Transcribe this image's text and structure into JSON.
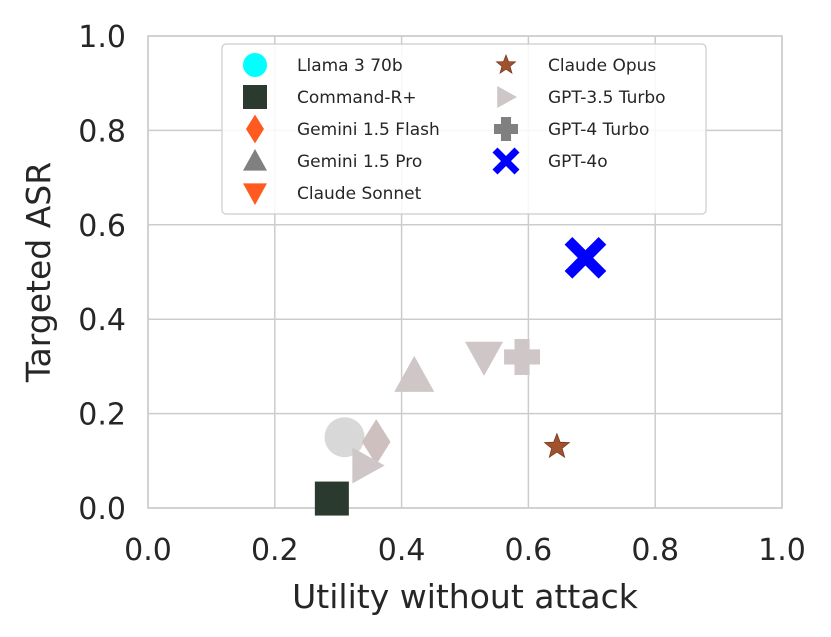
{
  "chart_data": {
    "type": "scatter",
    "xlabel": "Utility without attack",
    "ylabel": "Targeted ASR",
    "xlim": [
      0.0,
      1.0
    ],
    "ylim": [
      0.0,
      1.0
    ],
    "x_ticks": [
      "0.0",
      "0.2",
      "0.4",
      "0.6",
      "0.8",
      "1.0"
    ],
    "y_ticks": [
      "0.0",
      "0.2",
      "0.4",
      "0.6",
      "0.8",
      "1.0"
    ],
    "grid": true,
    "legend_placement": "top-center",
    "series": [
      {
        "name": "Llama 3 70b",
        "marker": "circle",
        "color": "#00ffff",
        "plot_color": "#d8d8d8",
        "x": 0.31,
        "y": 0.15
      },
      {
        "name": "Command-R+",
        "marker": "square",
        "color": "#2a3a2e",
        "plot_color": "#2a3a2e",
        "x": 0.29,
        "y": 0.02
      },
      {
        "name": "Gemini 1.5 Flash",
        "marker": "thin-diamond",
        "color": "#ff5a1f",
        "plot_color": "#cfc0c0",
        "x": 0.36,
        "y": 0.14
      },
      {
        "name": "Gemini 1.5 Pro",
        "marker": "triangle-up",
        "color": "#808080",
        "plot_color": "#cfc7c7",
        "x": 0.42,
        "y": 0.28
      },
      {
        "name": "Claude Sonnet",
        "marker": "triangle-down",
        "color": "#ff5a1f",
        "plot_color": "#cfc7c7",
        "x": 0.53,
        "y": 0.32
      },
      {
        "name": "Claude Opus",
        "marker": "star",
        "color": "#a0522d",
        "plot_color": "#a0522d",
        "x": 0.645,
        "y": 0.13
      },
      {
        "name": "GPT-3.5 Turbo",
        "marker": "triangle-right",
        "color": "#cfc7c7",
        "plot_color": "#cfc7c7",
        "x": 0.345,
        "y": 0.09
      },
      {
        "name": "GPT-4 Turbo",
        "marker": "plus",
        "color": "#808080",
        "plot_color": "#cfc7c7",
        "x": 0.59,
        "y": 0.32
      },
      {
        "name": "GPT-4o",
        "marker": "x",
        "color": "#0000ff",
        "plot_color": "#0000ff",
        "x": 0.69,
        "y": 0.53
      }
    ]
  }
}
